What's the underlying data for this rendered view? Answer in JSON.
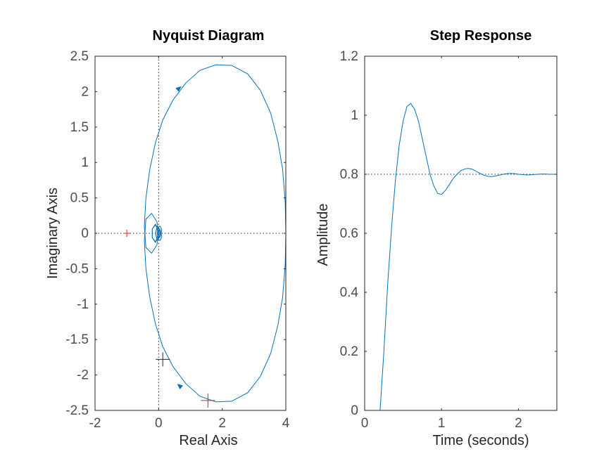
{
  "chart_data": [
    {
      "type": "line",
      "title": "Nyquist Diagram",
      "xlabel": "Real Axis",
      "ylabel": "Imaginary Axis",
      "xlim": [
        -2,
        4
      ],
      "ylim": [
        -2.5,
        2.5
      ],
      "xticks": [
        "-2",
        "0",
        "2",
        "4"
      ],
      "yticks": [
        "2.5",
        "2",
        "1.5",
        "1",
        "0.5",
        "0",
        "-0.5",
        "-1",
        "-1.5",
        "-2",
        "-2.5"
      ],
      "grid": false,
      "reference_lines": {
        "x": 0,
        "y": 0
      },
      "critical_point": {
        "x": -1,
        "y": 0,
        "color": "#d62020"
      },
      "markers": [
        {
          "x": 1.55,
          "y": -2.36,
          "color": "#c82828"
        },
        {
          "x": 0.13,
          "y": -1.78,
          "color": "#1a1a7a"
        }
      ],
      "series": [
        {
          "color": "#0072bd",
          "points": [
            [
              4.0,
              0.0
            ],
            [
              3.98,
              -0.45
            ],
            [
              3.9,
              -0.9
            ],
            [
              3.75,
              -1.3
            ],
            [
              3.52,
              -1.7
            ],
            [
              3.2,
              -2.02
            ],
            [
              2.8,
              -2.25
            ],
            [
              2.3,
              -2.37
            ],
            [
              1.8,
              -2.38
            ],
            [
              1.3,
              -2.3
            ],
            [
              0.85,
              -2.12
            ],
            [
              0.45,
              -1.88
            ],
            [
              0.13,
              -1.6
            ],
            [
              -0.1,
              -1.28
            ],
            [
              -0.28,
              -0.9
            ],
            [
              -0.4,
              -0.5
            ],
            [
              -0.45,
              -0.1
            ],
            [
              -0.4,
              0.2
            ],
            [
              -0.22,
              0.28
            ],
            [
              -0.05,
              0.16
            ],
            [
              0.0,
              0.0
            ],
            [
              -0.1,
              -0.13
            ],
            [
              -0.2,
              -0.06
            ],
            [
              -0.2,
              0.06
            ],
            [
              -0.1,
              0.12
            ],
            [
              0.05,
              0.05
            ],
            [
              0.1,
              -0.05
            ],
            [
              0.05,
              -0.1
            ],
            [
              -0.05,
              -0.08
            ],
            [
              -0.1,
              0.0
            ],
            [
              -0.06,
              0.07
            ],
            [
              0.02,
              0.06
            ],
            [
              0.05,
              0.0
            ],
            [
              0.02,
              -0.05
            ],
            [
              -0.03,
              -0.04
            ],
            [
              -0.04,
              0.02
            ],
            [
              0.0,
              0.03
            ],
            [
              0.02,
              0.0
            ]
          ]
        },
        {
          "color": "#0072bd",
          "points": [
            [
              4.0,
              0.0
            ],
            [
              3.98,
              0.45
            ],
            [
              3.9,
              0.9
            ],
            [
              3.75,
              1.3
            ],
            [
              3.52,
              1.7
            ],
            [
              3.2,
              2.02
            ],
            [
              2.8,
              2.25
            ],
            [
              2.3,
              2.37
            ],
            [
              1.8,
              2.38
            ],
            [
              1.3,
              2.3
            ],
            [
              0.85,
              2.12
            ],
            [
              0.45,
              1.88
            ],
            [
              0.13,
              1.6
            ],
            [
              -0.1,
              1.28
            ],
            [
              -0.28,
              0.9
            ],
            [
              -0.4,
              0.5
            ],
            [
              -0.45,
              0.1
            ],
            [
              -0.4,
              -0.2
            ],
            [
              -0.22,
              -0.28
            ],
            [
              -0.05,
              -0.16
            ],
            [
              0.0,
              0.0
            ],
            [
              -0.1,
              0.13
            ],
            [
              -0.2,
              0.06
            ],
            [
              -0.2,
              -0.06
            ],
            [
              -0.1,
              -0.12
            ],
            [
              0.05,
              -0.05
            ],
            [
              0.1,
              0.05
            ],
            [
              0.05,
              0.1
            ],
            [
              -0.05,
              0.08
            ],
            [
              -0.1,
              0.0
            ],
            [
              -0.06,
              -0.07
            ],
            [
              0.02,
              -0.06
            ],
            [
              0.05,
              0.0
            ],
            [
              0.02,
              0.05
            ],
            [
              -0.03,
              0.04
            ],
            [
              -0.04,
              -0.02
            ],
            [
              0.0,
              -0.03
            ],
            [
              0.02,
              0.0
            ]
          ]
        }
      ],
      "arrows": [
        {
          "x": 0.65,
          "y": 2.05,
          "dx": 0.25,
          "dy": 0.2
        },
        {
          "x": 0.65,
          "y": -2.15,
          "dx": -0.25,
          "dy": 0.2
        }
      ]
    },
    {
      "type": "line",
      "title": "Step Response",
      "xlabel": "Time (seconds)",
      "ylabel": "Amplitude",
      "xlim": [
        0,
        2.5
      ],
      "ylim": [
        0,
        1.2
      ],
      "xticks": [
        "0",
        "1",
        "2"
      ],
      "yticks": [
        "1.2",
        "1",
        "0.8",
        "0.6",
        "0.4",
        "0.2",
        "0"
      ],
      "grid": false,
      "reference_lines": {
        "y": 0.8
      },
      "series": [
        {
          "color": "#0072bd",
          "x": [
            0,
            0.2,
            0.25,
            0.3,
            0.35,
            0.4,
            0.45,
            0.5,
            0.55,
            0.6,
            0.65,
            0.7,
            0.75,
            0.8,
            0.85,
            0.9,
            0.95,
            1.0,
            1.05,
            1.1,
            1.15,
            1.2,
            1.25,
            1.3,
            1.35,
            1.4,
            1.45,
            1.5,
            1.55,
            1.6,
            1.65,
            1.7,
            1.75,
            1.8,
            1.85,
            1.9,
            1.95,
            2.0,
            2.05,
            2.1,
            2.15,
            2.2,
            2.25,
            2.3,
            2.35,
            2.4,
            2.45,
            2.5
          ],
          "y": [
            0,
            0,
            0.2,
            0.43,
            0.62,
            0.78,
            0.9,
            0.98,
            1.03,
            1.04,
            1.02,
            0.98,
            0.92,
            0.86,
            0.8,
            0.76,
            0.735,
            0.732,
            0.745,
            0.765,
            0.785,
            0.8,
            0.812,
            0.818,
            0.82,
            0.817,
            0.81,
            0.803,
            0.797,
            0.793,
            0.792,
            0.794,
            0.797,
            0.8,
            0.802,
            0.803,
            0.802,
            0.8,
            0.799,
            0.798,
            0.798,
            0.799,
            0.8,
            0.801,
            0.801,
            0.8,
            0.8,
            0.8
          ]
        }
      ]
    }
  ]
}
